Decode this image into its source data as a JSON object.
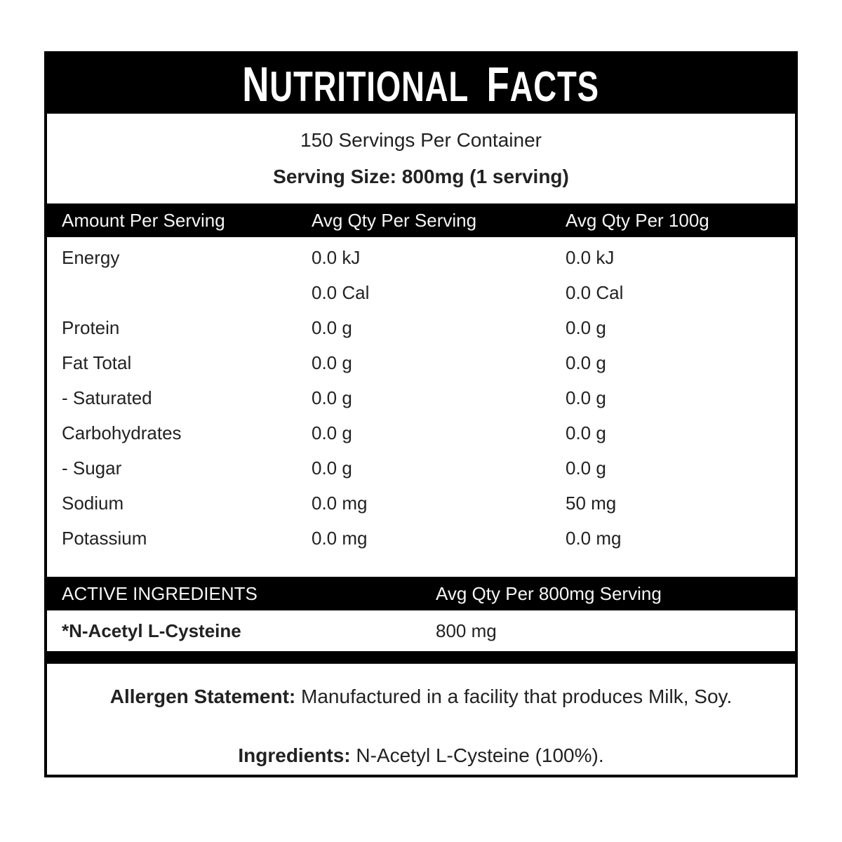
{
  "label": {
    "title_words": [
      "Nutritional",
      "Facts"
    ],
    "servings_per_container": "150 Servings Per Container",
    "serving_size": "Serving Size: 800mg (1 serving)",
    "nutrition_table": {
      "headers": [
        "Amount Per Serving",
        "Avg Qty Per Serving",
        "Avg Qty Per 100g"
      ],
      "rows": [
        {
          "name": "Energy",
          "per_serving": "0.0 kJ",
          "per_100g": "0.0 kJ"
        },
        {
          "name": "",
          "per_serving": "0.0 Cal",
          "per_100g": "0.0 Cal"
        },
        {
          "name": "Protein",
          "per_serving": "0.0 g",
          "per_100g": "0.0 g"
        },
        {
          "name": "Fat Total",
          "per_serving": "0.0 g",
          "per_100g": "0.0 g"
        },
        {
          "name": "- Saturated",
          "per_serving": "0.0 g",
          "per_100g": "0.0 g"
        },
        {
          "name": "Carbohydrates",
          "per_serving": "0.0 g",
          "per_100g": "0.0 g"
        },
        {
          "name": "- Sugar",
          "per_serving": "0.0 g",
          "per_100g": "0.0 g"
        },
        {
          "name": "Sodium",
          "per_serving": "0.0 mg",
          "per_100g": "50 mg"
        },
        {
          "name": "Potassium",
          "per_serving": "0.0 mg",
          "per_100g": "0.0 mg"
        }
      ]
    },
    "active_ingredients": {
      "header_name": "Active Ingredients",
      "header_qty": "Avg Qty Per 800mg Serving",
      "row_name": "*N-Acetyl L-Cysteine",
      "row_qty": "800 mg"
    },
    "allergen_label": "Allergen Statement:",
    "allergen_text": " Manufactured in a facility that produces Milk, Soy.",
    "ingredients_label": "Ingredients:",
    "ingredients_text": " N-Acetyl L-Cysteine (100%).",
    "colors": {
      "bar": "#000000",
      "bar_text": "#f5f5f5",
      "text": "#222222",
      "background": "#ffffff"
    }
  }
}
